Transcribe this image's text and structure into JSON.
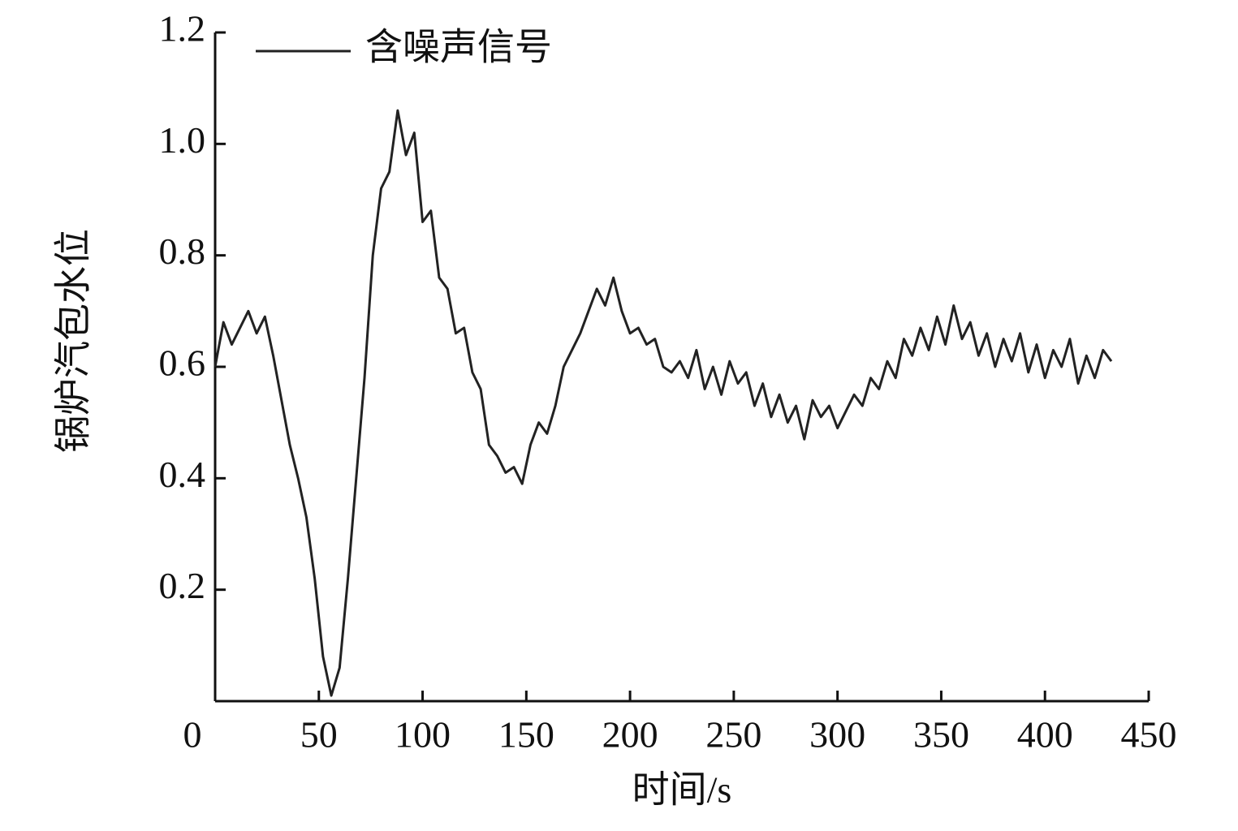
{
  "chart_data": {
    "type": "line",
    "x_label": "时间/s",
    "y_label": "锅炉汽包水位",
    "xlim": [
      0,
      450
    ],
    "xticks": [
      0,
      50,
      100,
      150,
      200,
      250,
      300,
      350,
      400,
      450
    ],
    "ylim": [
      0,
      1.2
    ],
    "yticks": [
      0.2,
      0.4,
      0.6,
      0.8,
      {
        "value": 1,
        "label": "1.0"
      },
      1.2
    ],
    "legend": "upper left",
    "x": [
      0,
      4,
      8,
      12,
      16,
      20,
      24,
      28,
      32,
      36,
      40,
      44,
      48,
      52,
      56,
      60,
      64,
      68,
      72,
      76,
      80,
      84,
      88,
      92,
      96,
      100,
      104,
      108,
      112,
      116,
      120,
      124,
      128,
      132,
      136,
      140,
      144,
      148,
      152,
      156,
      160,
      164,
      168,
      172,
      176,
      180,
      184,
      188,
      192,
      196,
      200,
      204,
      208,
      212,
      216,
      220,
      224,
      228,
      232,
      236,
      240,
      244,
      248,
      252,
      256,
      260,
      264,
      268,
      272,
      276,
      280,
      284,
      288,
      292,
      296,
      300,
      304,
      308,
      312,
      316,
      320,
      324,
      328,
      332,
      336,
      340,
      344,
      348,
      352,
      356,
      360,
      364,
      368,
      372,
      376,
      380,
      384,
      388,
      392,
      396,
      400,
      404,
      408,
      412,
      416,
      420,
      424,
      428,
      432
    ],
    "series": [
      {
        "name": "含噪声信号",
        "color": "#222222",
        "values": [
          0.6,
          0.68,
          0.64,
          0.67,
          0.7,
          0.66,
          0.69,
          0.62,
          0.54,
          0.46,
          0.4,
          0.33,
          0.22,
          0.08,
          0.01,
          0.06,
          0.22,
          0.4,
          0.58,
          0.8,
          0.92,
          0.95,
          1.06,
          0.98,
          1.02,
          0.86,
          0.88,
          0.76,
          0.74,
          0.66,
          0.67,
          0.59,
          0.56,
          0.46,
          0.44,
          0.41,
          0.42,
          0.39,
          0.46,
          0.5,
          0.48,
          0.53,
          0.6,
          0.63,
          0.66,
          0.7,
          0.74,
          0.71,
          0.76,
          0.7,
          0.66,
          0.67,
          0.64,
          0.65,
          0.6,
          0.59,
          0.61,
          0.58,
          0.63,
          0.56,
          0.6,
          0.55,
          0.61,
          0.57,
          0.59,
          0.53,
          0.57,
          0.51,
          0.55,
          0.5,
          0.53,
          0.47,
          0.54,
          0.51,
          0.53,
          0.49,
          0.52,
          0.55,
          0.53,
          0.58,
          0.56,
          0.61,
          0.58,
          0.65,
          0.62,
          0.67,
          0.63,
          0.69,
          0.64,
          0.71,
          0.65,
          0.68,
          0.62,
          0.66,
          0.6,
          0.65,
          0.61,
          0.66,
          0.59,
          0.64,
          0.58,
          0.63,
          0.6,
          0.65,
          0.57,
          0.62,
          0.58,
          0.63,
          0.61
        ]
      }
    ]
  }
}
